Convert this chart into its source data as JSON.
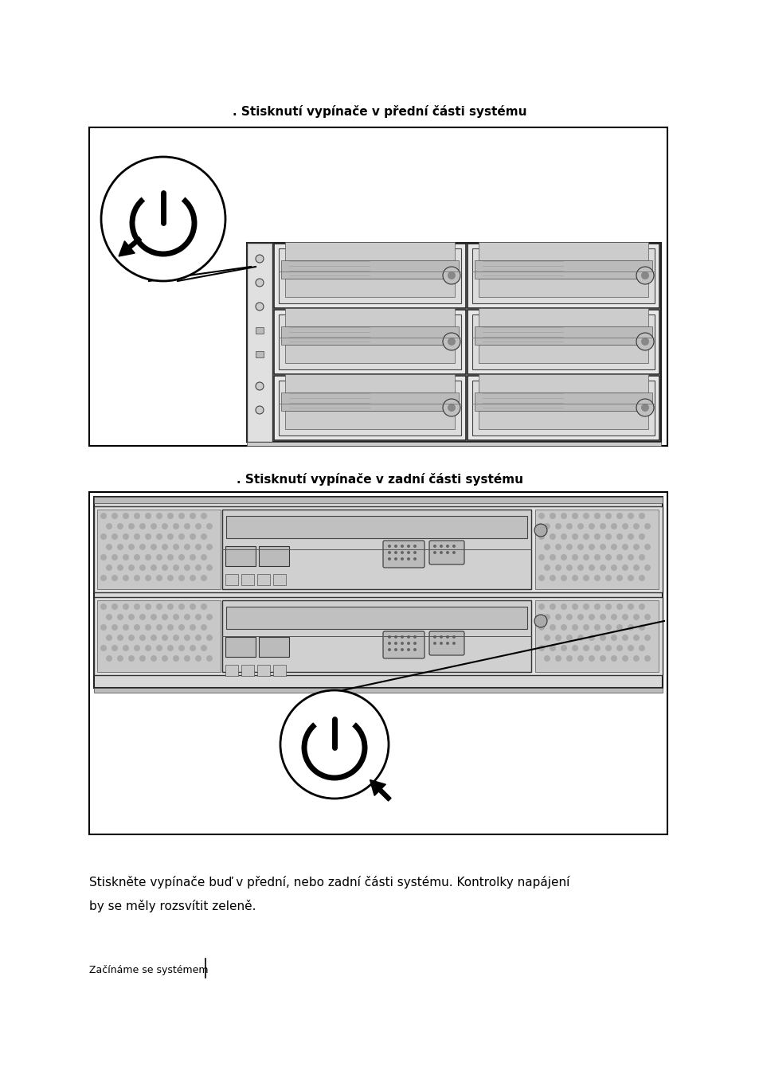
{
  "title1": ". Stisknutí vypínače v přední části systému",
  "title2": ". Stisknutí vypínače v zadní části systému",
  "body_line1": "Stiskněte vypínače buď v přední, nebo zadní části systému. Kontrolky napájení",
  "body_line2": "by se měly rozsvit it zeleně.",
  "footer_text": "Začínáme se systémem",
  "bg_color": "#ffffff",
  "text_color": "#000000",
  "fig_width": 9.54,
  "fig_height": 13.54
}
